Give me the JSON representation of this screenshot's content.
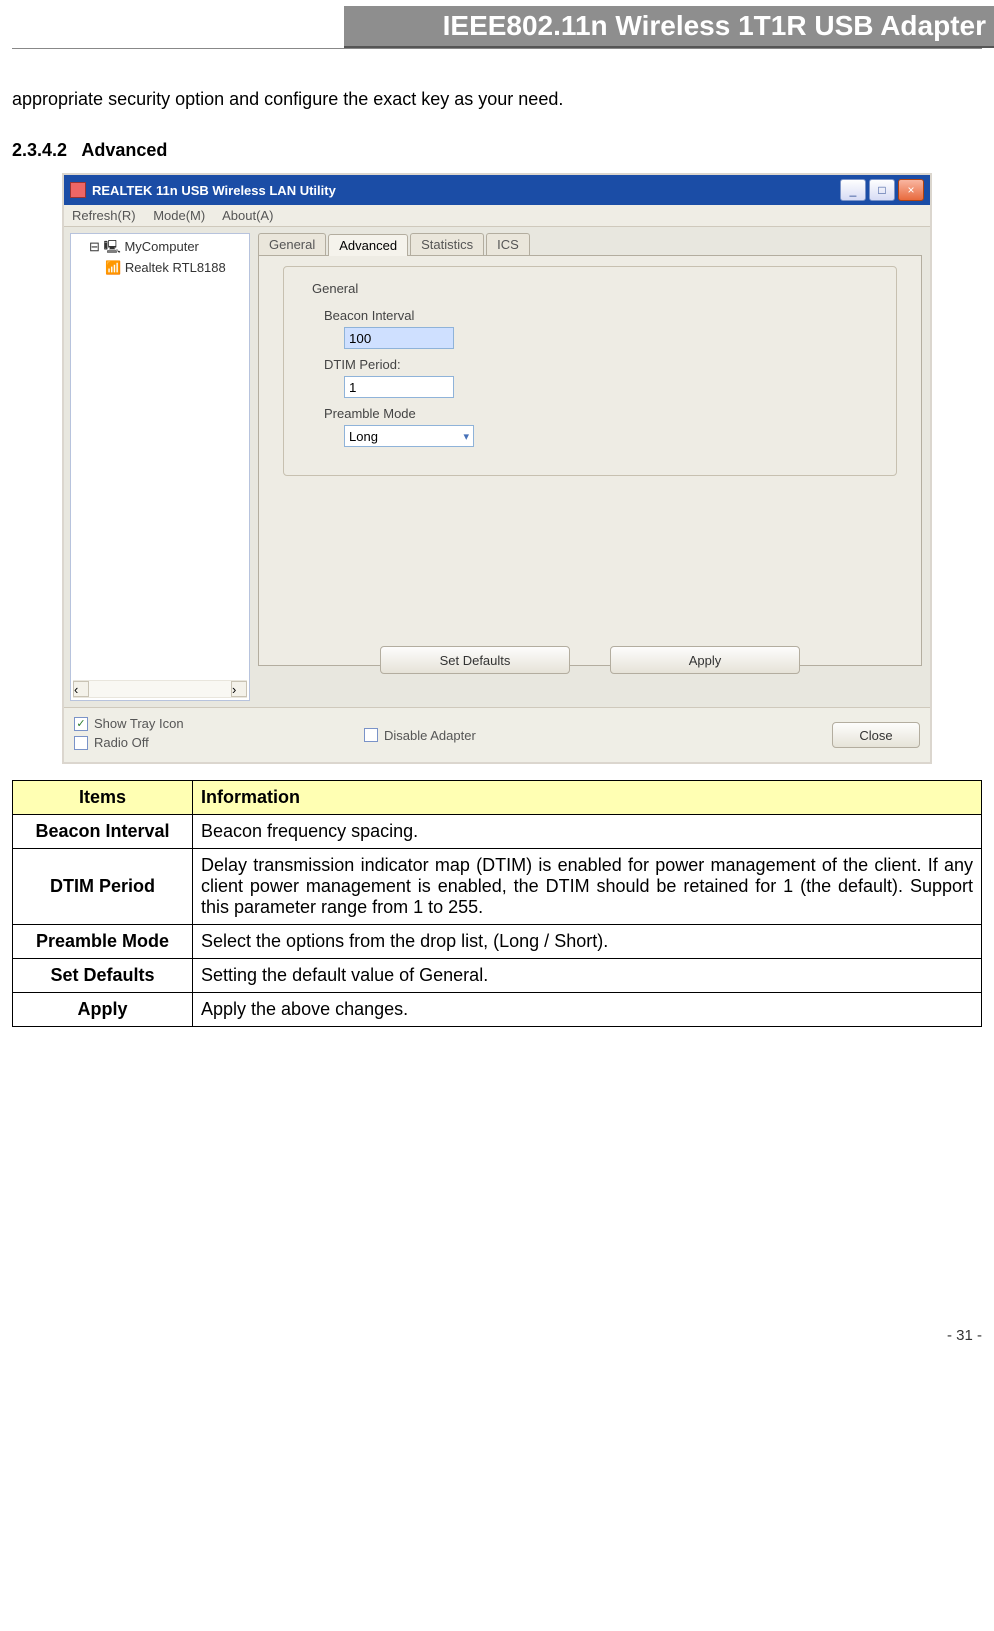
{
  "header": {
    "banner": "IEEE802.11n Wireless 1T1R USB Adapter"
  },
  "intro": "appropriate security option and configure the exact key as your need.",
  "section_num": "2.3.4.2",
  "section_title": "Advanced",
  "window": {
    "title": "REALTEK 11n USB Wireless LAN Utility",
    "menu": {
      "refresh": "Refresh(R)",
      "mode": "Mode(M)",
      "about": "About(A)"
    },
    "tree": {
      "root": "MyComputer",
      "sub": "Realtek RTL8188"
    },
    "tabs": {
      "general": "General",
      "advanced": "Advanced",
      "statistics": "Statistics",
      "ics": "ICS"
    },
    "group": {
      "legend": "General",
      "beacon_label": "Beacon Interval",
      "beacon_value": "100",
      "dtim_label": "DTIM Period:",
      "dtim_value": "1",
      "preamble_label": "Preamble Mode",
      "preamble_value": "Long"
    },
    "buttons": {
      "set_defaults": "Set Defaults",
      "apply": "Apply"
    },
    "bottom": {
      "show_tray": "Show Tray Icon",
      "radio_off": "Radio Off",
      "disable_adapter": "Disable Adapter",
      "close": "Close"
    }
  },
  "table": {
    "hdr_items": "Items",
    "hdr_info": "Information",
    "rows": [
      {
        "item": "Beacon Interval",
        "info": "Beacon frequency spacing."
      },
      {
        "item": "DTIM Period",
        "info": "Delay transmission indicator map (DTIM) is enabled for power management of the client. If any client power management is enabled, the DTIM should be retained for 1 (the default). Support this parameter range from 1 to 255."
      },
      {
        "item": "Preamble Mode",
        "info": "Select the options from the drop list, (Long / Short)."
      },
      {
        "item": "Set Defaults",
        "info": "Setting the default value of General."
      },
      {
        "item": "Apply",
        "info": "Apply the above changes."
      }
    ]
  },
  "page": "- 31 -"
}
